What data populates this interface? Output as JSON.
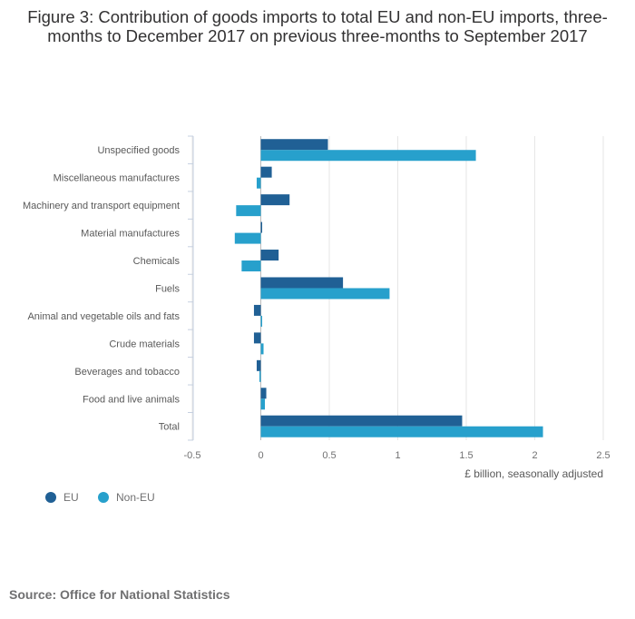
{
  "title": "Figure 3: Contribution of goods imports to total EU and non-EU imports, three-months to December 2017 on previous three-months to September 2017",
  "source": "Source: Office for National Statistics",
  "chart_data": {
    "type": "bar",
    "orientation": "horizontal",
    "title": "Figure 3: Contribution of goods imports to total EU and non-EU imports, three-months to December 2017 on previous three-months to September 2017",
    "xlabel": "£ billion, seasonally adjusted",
    "ylabel": "",
    "xlim": [
      -0.5,
      2.5
    ],
    "xticks": [
      "-0.5",
      "0",
      "0.5",
      "1",
      "1.5",
      "2",
      "2.5"
    ],
    "grid": true,
    "legend_position": "bottom-left",
    "categories": [
      "Unspecified goods",
      "Miscellaneous manufactures",
      "Machinery and transport equipment",
      "Material manufactures",
      "Chemicals",
      "Fuels",
      "Animal and vegetable oils and fats",
      "Crude materials",
      "Beverages and tobacco",
      "Food and live animals",
      "Total"
    ],
    "series": [
      {
        "name": "EU",
        "color": "#206095",
        "values": [
          0.49,
          0.08,
          0.21,
          0.01,
          0.13,
          0.6,
          -0.05,
          -0.05,
          -0.03,
          0.04,
          1.47
        ]
      },
      {
        "name": "Non-EU",
        "color": "#27a0cc",
        "values": [
          1.57,
          -0.03,
          -0.18,
          -0.19,
          -0.14,
          0.94,
          0.01,
          0.02,
          -0.01,
          0.03,
          2.06
        ]
      }
    ]
  }
}
